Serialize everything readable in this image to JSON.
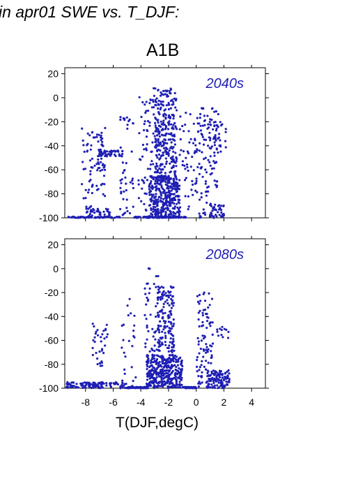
{
  "figure_title": "in apr01 SWE vs. T_DJF:",
  "scenario_label": "A1B",
  "point_color": "#1f1fb4",
  "chart_data": [
    {
      "type": "scatter",
      "panel_label": "2040s",
      "xlabel": "T(DJF,degC)",
      "ylabel": "",
      "xlim": [
        -9.5,
        5
      ],
      "ylim": [
        -100,
        25
      ],
      "xticks": [
        -8,
        -6,
        -4,
        -2,
        0,
        2,
        4
      ],
      "yticks": [
        -100,
        -80,
        -60,
        -40,
        -20,
        0,
        20
      ],
      "xtick_labels_shown": false,
      "clusters": [
        {
          "x": [
            -8.3,
            -6.5
          ],
          "y": [
            -22,
            -100
          ],
          "n": 70
        },
        {
          "x": [
            -7.2,
            -6.6
          ],
          "y": [
            -28,
            -62
          ],
          "n": 30
        },
        {
          "x": [
            -7.0,
            -5.3
          ],
          "y": [
            -44,
            -49
          ],
          "n": 45
        },
        {
          "x": [
            -7.8,
            -6.2
          ],
          "y": [
            -92,
            -100
          ],
          "n": 35
        },
        {
          "x": [
            -9.3,
            -5.5
          ],
          "y": [
            -99,
            -100
          ],
          "n": 60
        },
        {
          "x": [
            -5.5,
            -4.5
          ],
          "y": [
            -15,
            -100
          ],
          "n": 45
        },
        {
          "x": [
            -4.5,
            -0.5
          ],
          "y": [
            -99,
            -100
          ],
          "n": 90
        },
        {
          "x": [
            -4.2,
            -3.0
          ],
          "y": [
            8,
            -95
          ],
          "n": 70
        },
        {
          "x": [
            -3.0,
            -1.4
          ],
          "y": [
            8,
            -100
          ],
          "n": 380
        },
        {
          "x": [
            -3.4,
            -1.2
          ],
          "y": [
            -65,
            -100
          ],
          "n": 260
        },
        {
          "x": [
            -1.2,
            0.2
          ],
          "y": [
            -10,
            -95
          ],
          "n": 60
        },
        {
          "x": [
            0.2,
            1.6
          ],
          "y": [
            -8,
            -100
          ],
          "n": 120
        },
        {
          "x": [
            1.3,
            2.2
          ],
          "y": [
            -20,
            -50
          ],
          "n": 25
        },
        {
          "x": [
            1.0,
            2.0
          ],
          "y": [
            -88,
            -100
          ],
          "n": 30
        }
      ]
    },
    {
      "type": "scatter",
      "panel_label": "2080s",
      "xlabel": "T(DJF,degC)",
      "ylabel": "",
      "xlim": [
        -9.5,
        5
      ],
      "ylim": [
        -100,
        25
      ],
      "xticks": [
        -8,
        -6,
        -4,
        -2,
        0,
        2,
        4
      ],
      "yticks": [
        -100,
        -80,
        -60,
        -40,
        -20,
        0,
        20
      ],
      "xtick_labels_shown": true,
      "clusters": [
        {
          "x": [
            -9.4,
            -5.0
          ],
          "y": [
            -95,
            -100
          ],
          "n": 110
        },
        {
          "x": [
            -7.5,
            -6.4
          ],
          "y": [
            -46,
            -82
          ],
          "n": 35
        },
        {
          "x": [
            -5.5,
            -4.3
          ],
          "y": [
            -25,
            -100
          ],
          "n": 25
        },
        {
          "x": [
            -5.0,
            -3.5
          ],
          "y": [
            -99,
            -100
          ],
          "n": 70
        },
        {
          "x": [
            -3.8,
            -2.6
          ],
          "y": [
            2,
            -70
          ],
          "n": 45
        },
        {
          "x": [
            -2.8,
            -1.6
          ],
          "y": [
            -15,
            -70
          ],
          "n": 150
        },
        {
          "x": [
            -3.6,
            -1.0
          ],
          "y": [
            -72,
            -100
          ],
          "n": 380
        },
        {
          "x": [
            -1.0,
            0.0
          ],
          "y": [
            -99,
            -100
          ],
          "n": 50
        },
        {
          "x": [
            0.0,
            1.2
          ],
          "y": [
            -20,
            -100
          ],
          "n": 90
        },
        {
          "x": [
            0.8,
            2.4
          ],
          "y": [
            -85,
            -100
          ],
          "n": 110
        },
        {
          "x": [
            1.5,
            2.4
          ],
          "y": [
            -48,
            -60
          ],
          "n": 12
        }
      ]
    }
  ]
}
